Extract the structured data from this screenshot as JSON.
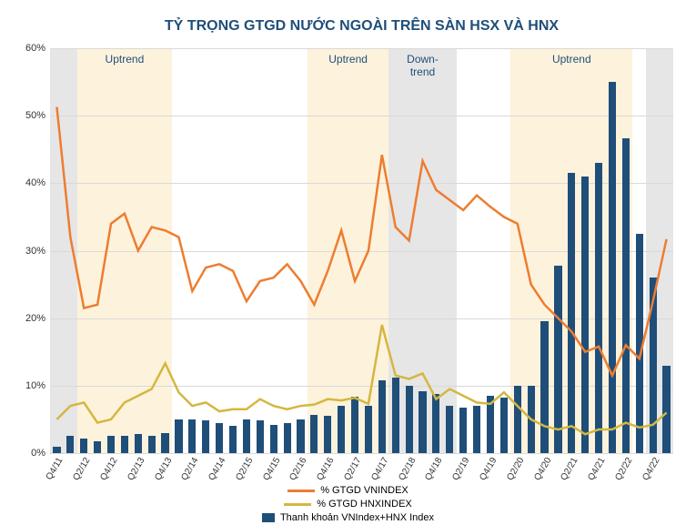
{
  "chart": {
    "type": "combo-bar-line",
    "title": "TỶ TRỌNG GTGD NƯỚC NGOÀI TRÊN SÀN HSX VÀ HNX",
    "title_color": "#1f4e79",
    "title_fontsize": 16,
    "background_color": "#ffffff",
    "grid_color": "#d9d9d9",
    "y_axis": {
      "min": 0,
      "max": 60,
      "step": 10,
      "format": "percent"
    },
    "categories": [
      "Q4/11",
      "Q1/12",
      "Q2/12",
      "Q3/12",
      "Q4/12",
      "Q1/13",
      "Q2/13",
      "Q3/13",
      "Q4/13",
      "Q1/14",
      "Q2/14",
      "Q3/14",
      "Q4/14",
      "Q1/15",
      "Q2/15",
      "Q3/15",
      "Q4/15",
      "Q1/16",
      "Q2/16",
      "Q3/16",
      "Q4/16",
      "Q1/17",
      "Q2/17",
      "Q3/17",
      "Q4/17",
      "Q1/18",
      "Q2/18",
      "Q3/18",
      "Q4/18",
      "Q1/19",
      "Q2/19",
      "Q3/19",
      "Q4/19",
      "Q1/20",
      "Q2/20",
      "Q3/20",
      "Q4/20",
      "Q1/21",
      "Q2/21",
      "Q3/21",
      "Q4/21",
      "Q1/22",
      "Q2/22",
      "Q3/22",
      "Q4/22",
      "Q1/23"
    ],
    "x_tick_every": 2,
    "bands": [
      {
        "start_idx": 0,
        "end_idx": 1,
        "color": "#e6e6e6"
      },
      {
        "start_idx": 2,
        "end_idx": 8,
        "color": "#fdf2dc",
        "label": "Uptrend"
      },
      {
        "start_idx": 19,
        "end_idx": 24,
        "color": "#fdf2dc",
        "label": "Uptrend"
      },
      {
        "start_idx": 25,
        "end_idx": 29,
        "color": "#e6e6e6",
        "label": "Down-\ntrend"
      },
      {
        "start_idx": 34,
        "end_idx": 42,
        "color": "#fdf2dc",
        "label": "Uptrend"
      },
      {
        "start_idx": 44,
        "end_idx": 45,
        "color": "#e6e6e6"
      }
    ],
    "series": {
      "bars": {
        "name": "Thanh khoản VNIndex+HNX Index",
        "color": "#1f4e79",
        "bar_width_ratio": 0.55,
        "values": [
          1,
          2.5,
          2.2,
          1.8,
          2.5,
          2.5,
          2.8,
          2.6,
          3,
          5,
          5,
          4.8,
          4.5,
          4,
          5,
          4.8,
          4.2,
          4.5,
          5,
          5.7,
          5.5,
          7,
          8.3,
          7,
          10.8,
          11.2,
          10,
          9.2,
          8.8,
          7,
          6.8,
          7,
          8.5,
          8.2,
          10,
          10,
          19.5,
          27.8,
          41.5,
          41,
          43,
          55,
          46.7,
          32.5,
          26,
          13
        ]
      },
      "line1": {
        "name": "% GTGD VNINDEX",
        "color": "#ed7d31",
        "line_width": 2.5,
        "values": [
          51.3,
          32,
          21.5,
          22,
          34,
          35.5,
          30,
          33.5,
          33,
          32,
          24,
          27.5,
          28,
          27,
          22.5,
          25.5,
          26,
          28,
          25.5,
          22,
          27,
          33,
          25.5,
          30,
          44.2,
          33.5,
          31.5,
          43.3,
          39,
          37.5,
          36,
          38.2,
          36.5,
          35,
          34,
          25,
          22,
          20,
          18,
          15,
          15.8,
          11.5,
          16,
          14,
          22.5,
          31.7
        ]
      },
      "line2": {
        "name": "% GTGD HNXINDEX",
        "color": "#d4b740",
        "line_width": 2.5,
        "values": [
          5,
          7,
          7.5,
          4.5,
          5,
          7.5,
          8.5,
          9.5,
          13.3,
          9,
          7,
          7.5,
          6.2,
          6.5,
          6.5,
          8,
          7,
          6.5,
          7,
          7.2,
          8,
          7.8,
          8.2,
          7.3,
          19,
          11.5,
          11,
          11.8,
          8,
          9.5,
          8.5,
          7.5,
          7.3,
          9,
          7,
          5,
          4,
          3.5,
          4,
          2.8,
          3.5,
          3.5,
          4.5,
          3.8,
          4.2,
          6
        ]
      }
    },
    "legend": [
      {
        "type": "line",
        "color": "#ed7d31",
        "label": "% GTGD VNINDEX"
      },
      {
        "type": "line",
        "color": "#d4b740",
        "label": "% GTGD HNXINDEX"
      },
      {
        "type": "box",
        "color": "#1f4e79",
        "label": "Thanh khoản VNIndex+HNX Index"
      }
    ]
  }
}
